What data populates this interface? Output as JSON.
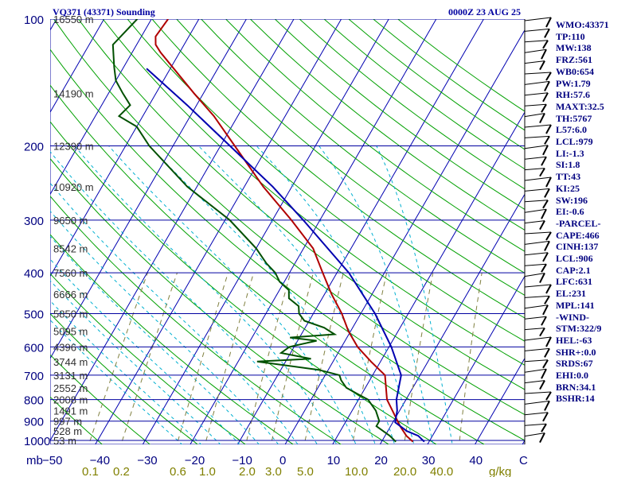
{
  "header": {
    "station": "VQ371 (43371) Sounding",
    "valid_time": "0000Z 23 AUG 25"
  },
  "indices": [
    "WMO:43371",
    "TP:110",
    "MW:138",
    "FRZ:561",
    "WB0:654",
    "PW:1.79",
    "RH:57.6",
    "MAXT:32.5",
    "TH:5767",
    "L57:6.0",
    "LCL:979",
    "LI:-1.3",
    "SI:1.8",
    "TT:43",
    "KI:25",
    "SW:196",
    "EI:-0.6",
    "-PARCEL-",
    "CAPE:466",
    "CINH:137",
    "LCL:906",
    "CAP:2.1",
    "LFC:631",
    "EL:231",
    "MPL:141",
    "-WIND-",
    "STM:322/9",
    "HEL:-63",
    "SHR+:0.0",
    "SRDS:67",
    "EHI:0.0",
    "BRN:34.1",
    "BSHR:14"
  ],
  "colors": {
    "isobar": "#0000a0",
    "isotherm": "#0000b0",
    "dry_adiabat": "#00a000",
    "moist_adiabat": "#00b0d0",
    "mixing_ratio": "#808040",
    "temperature": "#b00000",
    "dewpoint": "#005000",
    "parcel": "#0000b0",
    "text": "#000080",
    "mixing_label": "#808000"
  },
  "chart_data": {
    "type": "line",
    "title": "VQ371 (43371) Sounding",
    "subtitle": "0000Z 23 AUG 25",
    "y_axis": {
      "label": "mb",
      "scale": "log",
      "range": [
        1000,
        100
      ],
      "ticks": [
        "100",
        "200",
        "300",
        "400",
        "500",
        "600",
        "700",
        "800",
        "900",
        "1000"
      ]
    },
    "x_axis": {
      "label": "C",
      "range": [
        -50,
        50
      ],
      "ticks": [
        "-50",
        "-40",
        "-30",
        "-20",
        "-10",
        "0",
        "10",
        "20",
        "30",
        "40"
      ]
    },
    "height_labels": [
      {
        "p": 100,
        "label": "16550 m"
      },
      {
        "p": 150,
        "label": "14190 m"
      },
      {
        "p": 200,
        "label": "12390 m"
      },
      {
        "p": 250,
        "label": "10920 m"
      },
      {
        "p": 300,
        "label": "9650 m"
      },
      {
        "p": 350,
        "label": "8542 m"
      },
      {
        "p": 400,
        "label": "7560 m"
      },
      {
        "p": 450,
        "label": "6666 m"
      },
      {
        "p": 500,
        "label": "5850 m"
      },
      {
        "p": 550,
        "label": "5095 m"
      },
      {
        "p": 600,
        "label": "4396 m"
      },
      {
        "p": 650,
        "label": "3744 m"
      },
      {
        "p": 700,
        "label": "3131 m"
      },
      {
        "p": 750,
        "label": "2552 m"
      },
      {
        "p": 800,
        "label": "2008 m"
      },
      {
        "p": 850,
        "label": "1491 m"
      },
      {
        "p": 900,
        "label": "997 m"
      },
      {
        "p": 950,
        "label": "528 m"
      },
      {
        "p": 1000,
        "label": "53 m"
      }
    ],
    "mixing_ratio_labels": [
      "0.1",
      "0.2",
      "0.6",
      "1.0",
      "2.0",
      "3.0",
      "5.0",
      "10.0",
      "20.0",
      "40.0",
      "g/kg"
    ],
    "series": [
      {
        "key": "temperature",
        "points": [
          [
            1007,
            26.6
          ],
          [
            975,
            24.5
          ],
          [
            925,
            22
          ],
          [
            850,
            18.5
          ],
          [
            800,
            16
          ],
          [
            700,
            12.6
          ],
          [
            650,
            8
          ],
          [
            600,
            3.4
          ],
          [
            550,
            -0.5
          ],
          [
            500,
            -4
          ],
          [
            450,
            -8.5
          ],
          [
            400,
            -13
          ],
          [
            350,
            -18
          ],
          [
            300,
            -26
          ],
          [
            250,
            -36
          ],
          [
            200,
            -47
          ],
          [
            170,
            -55
          ],
          [
            150,
            -62
          ],
          [
            120,
            -74
          ],
          [
            115,
            -76
          ],
          [
            110,
            -77
          ],
          [
            100,
            -76.5
          ]
        ]
      },
      {
        "key": "dewpoint",
        "points": [
          [
            1007,
            23
          ],
          [
            975,
            21
          ],
          [
            925,
            17
          ],
          [
            900,
            17
          ],
          [
            850,
            15
          ],
          [
            800,
            12
          ],
          [
            775,
            9
          ],
          [
            750,
            6
          ],
          [
            720,
            4
          ],
          [
            700,
            3
          ],
          [
            680,
            -2
          ],
          [
            650,
            -16
          ],
          [
            640,
            -5
          ],
          [
            620,
            -12
          ],
          [
            600,
            -11
          ],
          [
            580,
            -6
          ],
          [
            570,
            -12
          ],
          [
            560,
            -3
          ],
          [
            540,
            -6
          ],
          [
            520,
            -11
          ],
          [
            500,
            -13
          ],
          [
            480,
            -14
          ],
          [
            460,
            -17
          ],
          [
            440,
            -18
          ],
          [
            420,
            -21
          ],
          [
            400,
            -23
          ],
          [
            380,
            -26
          ],
          [
            350,
            -30
          ],
          [
            300,
            -39
          ],
          [
            250,
            -52
          ],
          [
            200,
            -65
          ],
          [
            180,
            -70
          ],
          [
            170,
            -75
          ],
          [
            160,
            -74
          ],
          [
            150,
            -77
          ],
          [
            140,
            -80
          ],
          [
            130,
            -82
          ],
          [
            115,
            -85
          ],
          [
            100,
            -83
          ]
        ]
      },
      {
        "key": "parcel",
        "points": [
          [
            1007,
            29
          ],
          [
            975,
            27
          ],
          [
            950,
            24
          ],
          [
            906,
            20.5
          ],
          [
            850,
            19.5
          ],
          [
            800,
            18
          ],
          [
            700,
            16
          ],
          [
            600,
            10.5
          ],
          [
            500,
            3
          ],
          [
            400,
            -7.5
          ],
          [
            300,
            -23.5
          ],
          [
            250,
            -34
          ],
          [
            200,
            -48
          ],
          [
            160,
            -62
          ],
          [
            131,
            -75
          ]
        ]
      }
    ]
  }
}
